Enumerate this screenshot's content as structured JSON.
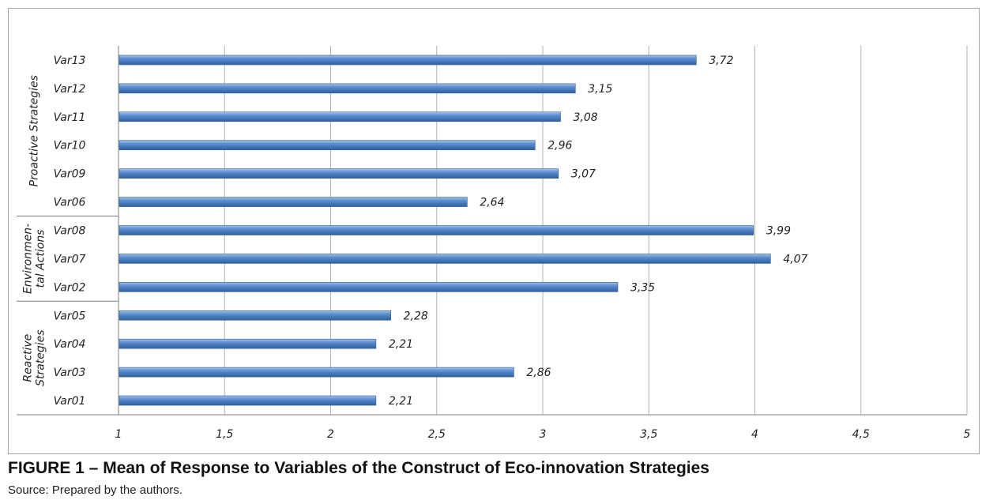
{
  "caption": "FIGURE 1 – Mean of Response to Variables of the Construct of Eco-innovation Strategies",
  "source": "Source: Prepared by the authors.",
  "chart_data": {
    "type": "bar",
    "orientation": "horizontal",
    "title": "",
    "xlabel": "",
    "ylabel": "",
    "xlim": [
      1,
      5
    ],
    "ticks": [
      1,
      1.5,
      2,
      2.5,
      3,
      3.5,
      4,
      4.5,
      5
    ],
    "tick_labels": [
      "1",
      "1,5",
      "2",
      "2,5",
      "3",
      "3,5",
      "4",
      "4,5",
      "5"
    ],
    "grid": true,
    "legend": "none",
    "bar_color": "#4f81bd",
    "categories": [
      "Var13",
      "Var12",
      "Var11",
      "Var10",
      "Var09",
      "Var06",
      "Var08",
      "Var07",
      "Var02",
      "Var05",
      "Var04",
      "Var03",
      "Var01"
    ],
    "values": [
      3.72,
      3.15,
      3.08,
      2.96,
      3.07,
      2.64,
      3.99,
      4.07,
      3.35,
      2.28,
      2.21,
      2.86,
      2.21
    ],
    "value_labels": [
      "3,72",
      "3,15",
      "3,08",
      "2,96",
      "3,07",
      "2,64",
      "3,99",
      "4,07",
      "3,35",
      "2,28",
      "2,21",
      "2,86",
      "2,21"
    ],
    "groups": [
      {
        "label_lines": [
          "Proactive Strategies"
        ],
        "count": 6
      },
      {
        "label_lines": [
          "Environmen-",
          "tal Actions"
        ],
        "count": 3
      },
      {
        "label_lines": [
          "Reactive",
          "Strategies"
        ],
        "count": 4
      }
    ]
  }
}
